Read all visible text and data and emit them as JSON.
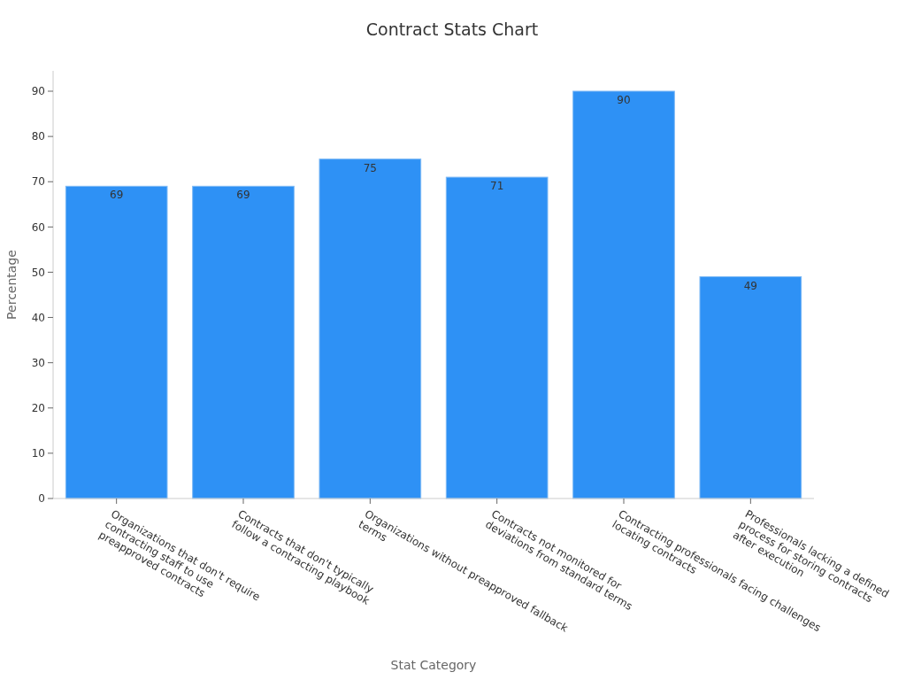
{
  "chart_data": {
    "type": "bar",
    "title": "Contract Stats Chart",
    "xlabel": "Stat Category",
    "ylabel": "Percentage",
    "categories": [
      "Organizations that don't require\ncontracting staff to use\npreapproved contracts",
      "Contracts that don't typically\nfollow a contracting playbook",
      "Organizations without preapproved fallback\nterms",
      "Contracts not monitored for\ndeviations from standard terms",
      "Contracting professionals facing challenges\nlocating contracts",
      "Professionals lacking a defined\nprocess for storing contracts\nafter execution"
    ],
    "values": [
      69,
      69,
      75,
      71,
      90,
      49
    ],
    "color": "#2e91f5",
    "ylim": [
      0,
      94.5
    ],
    "yticks": [
      0,
      10,
      20,
      30,
      40,
      50,
      60,
      70,
      80,
      90
    ],
    "data_labels": true,
    "grid": false
  }
}
